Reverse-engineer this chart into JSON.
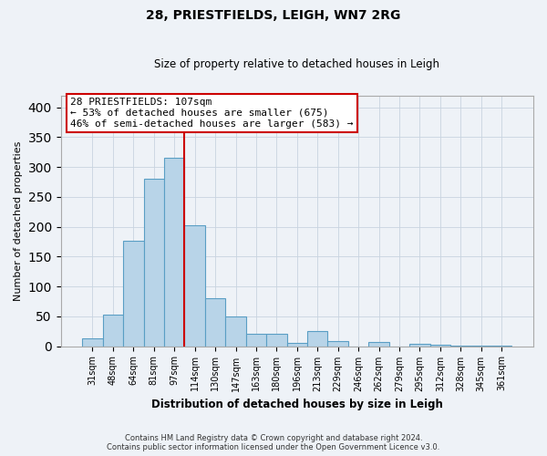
{
  "title": "28, PRIESTFIELDS, LEIGH, WN7 2RG",
  "subtitle": "Size of property relative to detached houses in Leigh",
  "xlabel": "Distribution of detached houses by size in Leigh",
  "ylabel": "Number of detached properties",
  "categories": [
    "31sqm",
    "48sqm",
    "64sqm",
    "81sqm",
    "97sqm",
    "114sqm",
    "130sqm",
    "147sqm",
    "163sqm",
    "180sqm",
    "196sqm",
    "213sqm",
    "229sqm",
    "246sqm",
    "262sqm",
    "279sqm",
    "295sqm",
    "312sqm",
    "328sqm",
    "345sqm",
    "361sqm"
  ],
  "values": [
    13,
    53,
    177,
    281,
    315,
    203,
    81,
    50,
    20,
    20,
    5,
    25,
    8,
    0,
    7,
    0,
    4,
    2,
    1,
    1,
    1
  ],
  "bar_color": "#b8d4e8",
  "bar_edge_color": "#5a9ec4",
  "vline_color": "#cc0000",
  "vline_index": 5,
  "ylim": [
    0,
    420
  ],
  "yticks": [
    0,
    50,
    100,
    150,
    200,
    250,
    300,
    350,
    400
  ],
  "annotation_text": "28 PRIESTFIELDS: 107sqm\n← 53% of detached houses are smaller (675)\n46% of semi-detached houses are larger (583) →",
  "annotation_box_color": "#ffffff",
  "annotation_box_edge": "#cc0000",
  "footer_line1": "Contains HM Land Registry data © Crown copyright and database right 2024.",
  "footer_line2": "Contains public sector information licensed under the Open Government Licence v3.0.",
  "background_color": "#eef2f7",
  "plot_background": "#eef2f7",
  "grid_color": "#c8d4e0"
}
